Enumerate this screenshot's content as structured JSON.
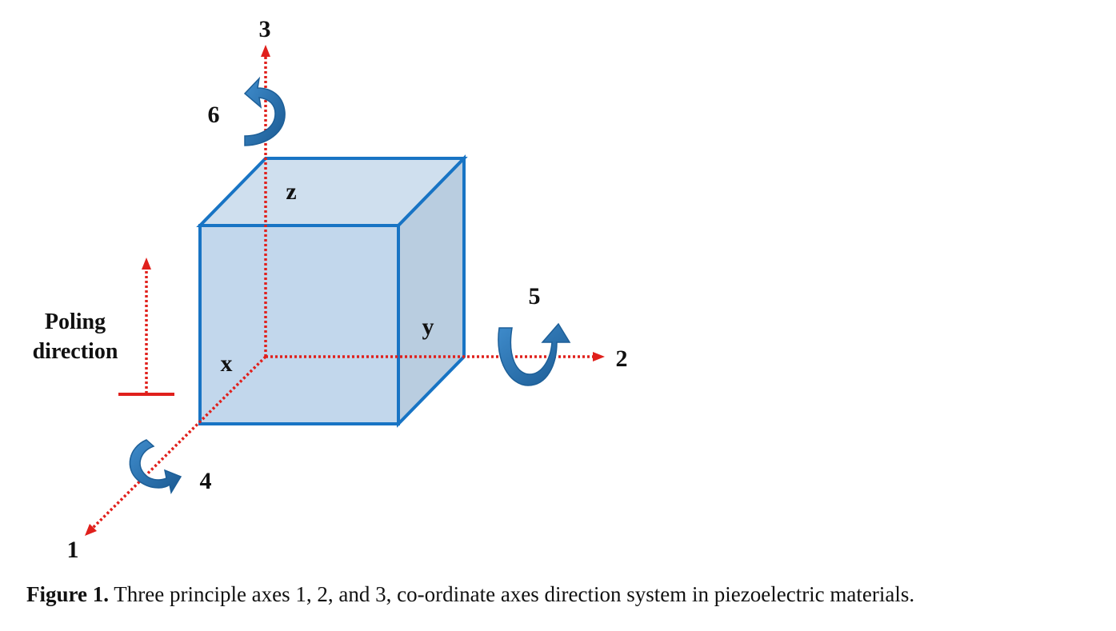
{
  "diagram": {
    "axes": {
      "axis_1": "1",
      "axis_2": "2",
      "axis_3": "3"
    },
    "rotations": {
      "rot_4": "4",
      "rot_5": "5",
      "rot_6": "6"
    },
    "faces": {
      "x": "x",
      "y": "y",
      "z": "z"
    },
    "poling": {
      "line1": "Poling",
      "line2": "direction"
    },
    "colors": {
      "axis": "#e0201c",
      "cube_edge": "#1874c4",
      "cube_front": "#c2d7ec",
      "cube_top": "#cfdfee",
      "cube_side": "#b9cde0",
      "arrow_fill": "#2a73b2"
    },
    "icons": {
      "rotation": "curved-arrow-icon"
    }
  },
  "caption": {
    "label": "Figure 1.",
    "text": "Three principle axes 1, 2, and 3, co-ordinate axes direction system in piezoelectric materials."
  }
}
